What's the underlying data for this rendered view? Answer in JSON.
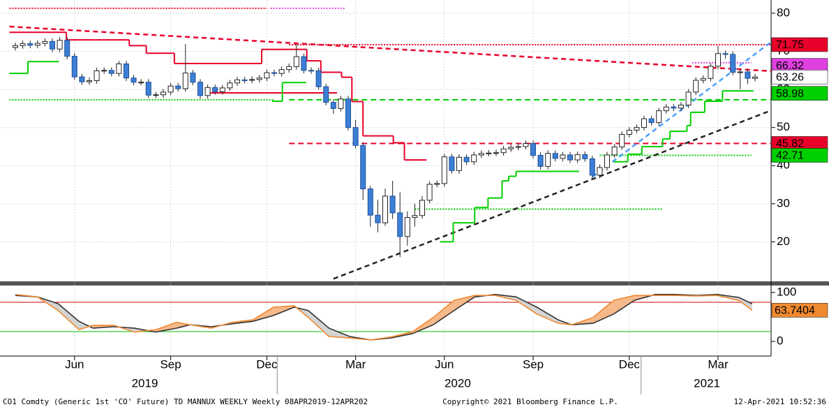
{
  "chart_data": [
    {
      "type": "candlestick",
      "open": [
        71.0,
        71.5,
        72.0,
        71.6,
        72.1,
        72.6,
        70.6,
        72.9,
        68.7,
        63.3,
        62.0,
        62.3,
        64.9,
        65.0,
        64.2,
        66.7,
        63.0,
        61.9,
        61.9,
        58.5,
        58.6,
        59.3,
        60.9,
        60.2,
        64.3,
        61.9,
        58.4,
        60.5,
        59.4,
        60.4,
        61.7,
        62.5,
        62.4,
        62.6,
        63.0,
        64.4,
        64.2,
        65.2,
        66.0,
        68.6,
        65.0,
        64.9,
        60.7,
        56.6,
        55.0,
        57.5,
        50.0,
        45.3,
        33.9,
        27.0,
        25.0,
        32.0,
        27.6,
        21.4,
        26.4,
        26.9,
        30.9,
        35.1,
        35.3,
        42.3,
        38.7,
        42.2,
        41.0,
        42.8,
        43.2,
        43.3,
        43.4,
        44.4,
        44.8,
        45.0,
        45.8,
        42.7,
        39.8,
        43.2,
        41.9,
        42.8,
        41.5,
        42.9,
        41.8,
        37.5,
        39.5,
        42.8,
        44.9,
        48.2,
        49.3,
        50.0,
        52.3,
        51.3,
        54.4,
        55.4,
        55.1,
        55.9,
        59.3,
        62.4,
        62.9,
        66.1,
        69.4,
        69.2,
        64.5,
        64.6,
        62.9
      ],
      "high": [
        72.3,
        72.8,
        72.8,
        72.9,
        73.4,
        73.4,
        73.7,
        73.7,
        69.5,
        64.1,
        63.1,
        65.7,
        65.8,
        65.8,
        67.5,
        67.5,
        63.8,
        62.7,
        62.7,
        59.4,
        60.1,
        61.7,
        61.7,
        71.9,
        65.1,
        62.7,
        61.3,
        61.3,
        61.2,
        62.5,
        63.3,
        63.3,
        63.4,
        63.8,
        65.2,
        65.2,
        66.0,
        66.8,
        71.8,
        69.4,
        65.8,
        65.7,
        61.5,
        57.4,
        58.3,
        58.3,
        52.0,
        46.1,
        34.7,
        31.0,
        34.0,
        36.0,
        33.0,
        28.0,
        30.0,
        32.0,
        35.9,
        36.1,
        43.1,
        43.1,
        43.0,
        43.0,
        43.6,
        44.0,
        44.1,
        44.2,
        45.2,
        45.6,
        45.8,
        46.6,
        46.6,
        43.5,
        44.0,
        44.0,
        43.6,
        43.6,
        43.7,
        43.7,
        42.6,
        40.3,
        43.6,
        45.7,
        49.0,
        50.1,
        50.8,
        53.1,
        53.1,
        55.2,
        56.2,
        56.2,
        56.7,
        60.1,
        63.2,
        63.7,
        66.9,
        71.4,
        70.2,
        70.0,
        65.4,
        65.4,
        64.1
      ],
      "low": [
        70.2,
        70.7,
        70.8,
        70.8,
        71.3,
        69.8,
        69.8,
        67.9,
        62.5,
        61.2,
        61.2,
        61.5,
        64.1,
        63.4,
        63.4,
        62.2,
        61.1,
        61.1,
        57.7,
        57.7,
        57.8,
        58.5,
        59.4,
        59.4,
        61.1,
        57.6,
        57.6,
        58.6,
        58.6,
        59.6,
        60.9,
        61.6,
        61.6,
        61.8,
        62.2,
        63.4,
        63.4,
        64.4,
        65.2,
        64.2,
        64.1,
        59.9,
        55.8,
        53.6,
        54.2,
        49.2,
        44.5,
        31.0,
        24.0,
        22.5,
        24.2,
        26.0,
        16.0,
        19.0,
        24.0,
        26.1,
        30.1,
        34.3,
        34.5,
        37.9,
        37.9,
        40.2,
        40.2,
        42.0,
        42.4,
        42.5,
        42.6,
        43.6,
        44.0,
        44.2,
        41.9,
        39.0,
        39.0,
        41.1,
        41.1,
        40.7,
        40.7,
        41.0,
        36.7,
        36.7,
        38.7,
        42.0,
        44.1,
        47.4,
        48.5,
        49.2,
        50.5,
        50.5,
        53.6,
        54.3,
        54.3,
        55.1,
        58.5,
        61.6,
        62.1,
        65.3,
        68.0,
        63.7,
        60.0,
        61.4,
        62.1
      ],
      "close": [
        71.5,
        72.0,
        71.6,
        72.1,
        72.6,
        70.6,
        72.9,
        68.7,
        63.3,
        62.0,
        62.3,
        64.9,
        65.0,
        64.2,
        66.7,
        63.0,
        61.9,
        61.9,
        58.5,
        58.6,
        59.3,
        60.9,
        60.2,
        64.3,
        61.9,
        58.4,
        60.5,
        59.4,
        60.4,
        61.7,
        62.5,
        62.4,
        62.6,
        63.0,
        64.4,
        64.2,
        65.2,
        66.0,
        68.6,
        65.0,
        64.9,
        60.7,
        56.6,
        55.0,
        57.5,
        50.0,
        45.3,
        33.9,
        27.0,
        25.0,
        32.0,
        27.6,
        21.4,
        26.4,
        26.9,
        30.9,
        35.1,
        35.3,
        42.3,
        38.7,
        42.2,
        41.0,
        42.8,
        43.2,
        43.3,
        43.4,
        44.4,
        44.8,
        45.0,
        45.8,
        42.7,
        39.8,
        43.2,
        41.9,
        42.8,
        41.5,
        42.9,
        41.8,
        37.5,
        39.5,
        42.8,
        44.9,
        48.2,
        49.3,
        50.0,
        52.3,
        51.3,
        54.4,
        55.4,
        55.1,
        55.9,
        59.3,
        62.4,
        62.9,
        66.1,
        69.4,
        69.2,
        64.5,
        64.6,
        62.9,
        63.26
      ],
      "up_color": "#ffffff",
      "down_color": "#3d7fd6",
      "ylim": [
        10,
        82
      ],
      "yticks": [
        20,
        30,
        40,
        50,
        60,
        70,
        80
      ],
      "grid": true,
      "xlim": [
        -0.8,
        102.2
      ],
      "xticks": [
        {
          "value": 8,
          "label": "Jun"
        },
        {
          "value": 21,
          "label": "Sep"
        },
        {
          "value": 34,
          "label": "Dec"
        },
        {
          "value": 46,
          "label": "Mar"
        },
        {
          "value": 58,
          "label": "Jun"
        },
        {
          "value": 70,
          "label": "Sep"
        },
        {
          "value": 83,
          "label": "Dec"
        },
        {
          "value": 95,
          "label": "Mar"
        }
      ],
      "years": [
        {
          "value": 17.5,
          "label": "2019"
        },
        {
          "value": 59.8,
          "label": "2020"
        },
        {
          "value": 93.5,
          "label": "2021"
        }
      ],
      "year_breaks": [
        35.4,
        84.6
      ],
      "levels": [
        {
          "value": 81.3,
          "from": -0.8,
          "to": 34,
          "color": "#e8002a",
          "style": "dotted"
        },
        {
          "value": 81.3,
          "from": 34.5,
          "to": 44.5,
          "color": "#e040e0",
          "style": "dotted"
        },
        {
          "value": 57.3,
          "from": -0.8,
          "to": 35,
          "color": "#00c800",
          "style": "dotted"
        },
        {
          "value": 59.1,
          "from": 26,
          "to": 43.5,
          "color": "#e8002a",
          "style": "solid"
        },
        {
          "value": 71.75,
          "from": 37,
          "to": 102.2,
          "color": "#e8002a",
          "style": "dotted"
        },
        {
          "value": 45.82,
          "from": 37,
          "to": 102.2,
          "color": "#e8002a",
          "style": "dashed"
        },
        {
          "value": 57.3,
          "from": 37,
          "to": 102.2,
          "color": "#00c800",
          "style": "dashed"
        },
        {
          "value": 42.71,
          "from": 79,
          "to": 99.5,
          "color": "#00c800",
          "style": "dotted"
        },
        {
          "value": 28.6,
          "from": 54,
          "to": 87.5,
          "color": "#00c800",
          "style": "dotted"
        },
        {
          "value": 67.0,
          "from": 91.5,
          "to": 99.5,
          "color": "#e040e0",
          "style": "dotted"
        }
      ],
      "trendlines": [
        {
          "points": [
            [
              -0.8,
              76.5
            ],
            [
              102.2,
              64.8
            ]
          ],
          "color": "#e8002a"
        },
        {
          "points": [
            [
              43,
              10.3
            ],
            [
              102.2,
              54.5
            ]
          ],
          "color": "#222222"
        },
        {
          "points": [
            [
              78,
              37
            ],
            [
              102.2,
              72.5
            ]
          ],
          "color": "#4aa0ff"
        }
      ],
      "steps": [
        {
          "color": "#e8002a",
          "points": [
            [
              -0.8,
              75
            ],
            [
              6.9,
              73
            ],
            [
              15.4,
              71.5
            ],
            [
              17.7,
              69.5
            ],
            [
              21.5,
              66.8
            ],
            [
              33.3,
              70.5
            ],
            [
              39.4,
              67.5
            ],
            [
              41.3,
              64.5
            ],
            [
              44.1,
              63.2
            ],
            [
              45.5,
              56.8
            ],
            [
              47,
              47.8
            ],
            [
              51.1,
              46
            ],
            [
              52.6,
              41.5
            ],
            [
              55.6,
              41.5
            ]
          ]
        },
        {
          "color": "#00d000",
          "points": [
            [
              -0.8,
              64.2
            ],
            [
              1.7,
              67.3
            ],
            [
              5.9,
              67.3
            ]
          ]
        },
        {
          "color": "#00d000",
          "points": [
            [
              34.7,
              56.9
            ],
            [
              36.1,
              61.8
            ],
            [
              39.3,
              61.8
            ]
          ]
        },
        {
          "color": "#00d000",
          "points": [
            [
              57.4,
              20
            ],
            [
              59.2,
              25
            ],
            [
              62.1,
              29
            ],
            [
              63.9,
              31.5
            ],
            [
              65.8,
              36
            ],
            [
              66.7,
              37.2
            ],
            [
              67.7,
              38.5
            ],
            [
              76.2,
              38.5
            ]
          ]
        },
        {
          "color": "#00d000",
          "points": [
            [
              80.9,
              41
            ],
            [
              82.8,
              43
            ],
            [
              84.7,
              45
            ],
            [
              87.5,
              47
            ],
            [
              88.5,
              49
            ],
            [
              90.8,
              50.5
            ],
            [
              91.3,
              54
            ],
            [
              93.2,
              56.9
            ],
            [
              95.6,
              59.6
            ],
            [
              99.8,
              59.6
            ]
          ]
        }
      ],
      "tags": [
        {
          "value": 71.75,
          "bg": "#e8002a",
          "fg": "#ffffff"
        },
        {
          "value": 66.32,
          "bg": "#e040e0",
          "fg": "#ffffff"
        },
        {
          "value": 63.26,
          "bg": "#ffffff",
          "fg": "#000000"
        },
        {
          "value": 58.98,
          "bg": "#00d000",
          "fg": "#000000"
        },
        {
          "value": 45.82,
          "bg": "#e8002a",
          "fg": "#ffffff"
        },
        {
          "value": 42.71,
          "bg": "#00d000",
          "fg": "#000000"
        }
      ]
    },
    {
      "type": "line",
      "x": [
        0,
        3,
        5.8,
        8.6,
        10.5,
        13.3,
        16.1,
        19,
        21.8,
        23.6,
        26.5,
        29.3,
        32.1,
        34.9,
        37.7,
        39.6,
        42.4,
        45.2,
        48,
        50.8,
        53.7,
        56.5,
        59.3,
        62.1,
        64.9,
        67.7,
        70.5,
        73.4,
        75.2,
        78.1,
        80.9,
        83.7,
        86.5,
        89.3,
        92.1,
        94.9,
        97.8,
        99.6
      ],
      "series": [
        {
          "color": "#333333",
          "values": [
            94,
            91,
            77,
            41,
            27,
            30,
            27,
            19,
            27,
            34,
            30,
            36,
            41,
            53,
            70,
            63,
            27,
            10,
            3,
            7,
            16,
            34,
            63,
            91,
            96,
            91,
            70,
            44,
            34,
            37,
            56,
            84,
            96,
            96,
            94,
            96,
            90,
            77
          ]
        },
        {
          "color": "#f08a30",
          "values": [
            96,
            91,
            63,
            24,
            33,
            33,
            19,
            24,
            39,
            34,
            27,
            39,
            44,
            70,
            73,
            49,
            10,
            7,
            3,
            9,
            20,
            49,
            84,
            94,
            94,
            84,
            56,
            37,
            34,
            49,
            84,
            94,
            94,
            94,
            93,
            94,
            84,
            63.7404
          ]
        }
      ],
      "ylim": [
        0,
        100
      ],
      "yticks": [
        0,
        100
      ],
      "levels": [
        {
          "value": 80,
          "color": "#d00000"
        },
        {
          "value": 20,
          "color": "#00c000"
        }
      ],
      "tag": {
        "bg": "#f08a30",
        "fg": "#000000"
      }
    }
  ],
  "footer": {
    "left": "CO1 Comdty (Generic 1st 'CO' Future) TD MANNUX WEEKLY  Weekly 08APR2019-12APR202",
    "center": "Copyright© 2021 Bloomberg Finance L.P.",
    "right": "12-Apr-2021 10:52:36"
  }
}
